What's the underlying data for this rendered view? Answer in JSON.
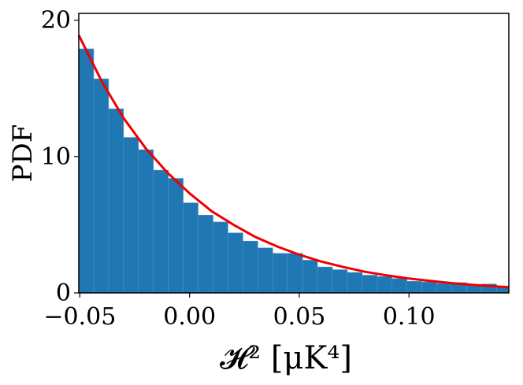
{
  "chart_data": {
    "type": "bar",
    "subtype": "histogram-with-fit",
    "xlabel": "𝓗² [μK⁴]",
    "ylabel": "PDF",
    "xlim": [
      -0.0505,
      0.1455
    ],
    "ylim": [
      0,
      20.5
    ],
    "xticks": [
      -0.05,
      0.0,
      0.05,
      0.1
    ],
    "xtick_labels": [
      "−0.05",
      "0.00",
      "0.05",
      "0.10"
    ],
    "yticks": [
      0,
      10,
      20
    ],
    "ytick_labels": [
      "0",
      "10",
      "20"
    ],
    "bin_edges": [
      -0.0505,
      -0.0437,
      -0.0369,
      -0.0301,
      -0.0233,
      -0.0165,
      -0.0097,
      -0.0029,
      0.0039,
      0.0107,
      0.0175,
      0.0243,
      0.0311,
      0.0379,
      0.0447,
      0.0515,
      0.0583,
      0.0651,
      0.0719,
      0.0787,
      0.0855,
      0.0923,
      0.0991,
      0.1059,
      0.1127,
      0.1195,
      0.1263,
      0.1331,
      0.1399,
      0.1455
    ],
    "bin_values": [
      17.9,
      15.7,
      13.5,
      11.4,
      10.5,
      9.0,
      8.4,
      6.6,
      5.7,
      5.2,
      4.4,
      3.8,
      3.3,
      2.9,
      2.9,
      2.4,
      1.9,
      1.7,
      1.5,
      1.3,
      1.2,
      1.05,
      0.85,
      0.8,
      0.7,
      0.75,
      0.6,
      0.65,
      0.45
    ],
    "fit_curve": {
      "x": [
        -0.0505,
        -0.04,
        -0.03,
        -0.02,
        -0.01,
        0.0,
        0.01,
        0.02,
        0.03,
        0.04,
        0.05,
        0.06,
        0.07,
        0.08,
        0.09,
        0.1,
        0.11,
        0.12,
        0.13,
        0.14,
        0.1455
      ],
      "y": [
        18.9,
        15.5,
        12.8,
        10.6,
        8.8,
        7.3,
        6.0,
        5.0,
        4.1,
        3.4,
        2.8,
        2.3,
        1.9,
        1.55,
        1.28,
        1.05,
        0.87,
        0.71,
        0.58,
        0.47,
        0.42
      ]
    },
    "grid": false,
    "legend": "none",
    "colors": {
      "bars": "#1f77b4",
      "bar_edge": "#4d94c6",
      "fit": "#ee0000",
      "axes": "#000000"
    }
  }
}
